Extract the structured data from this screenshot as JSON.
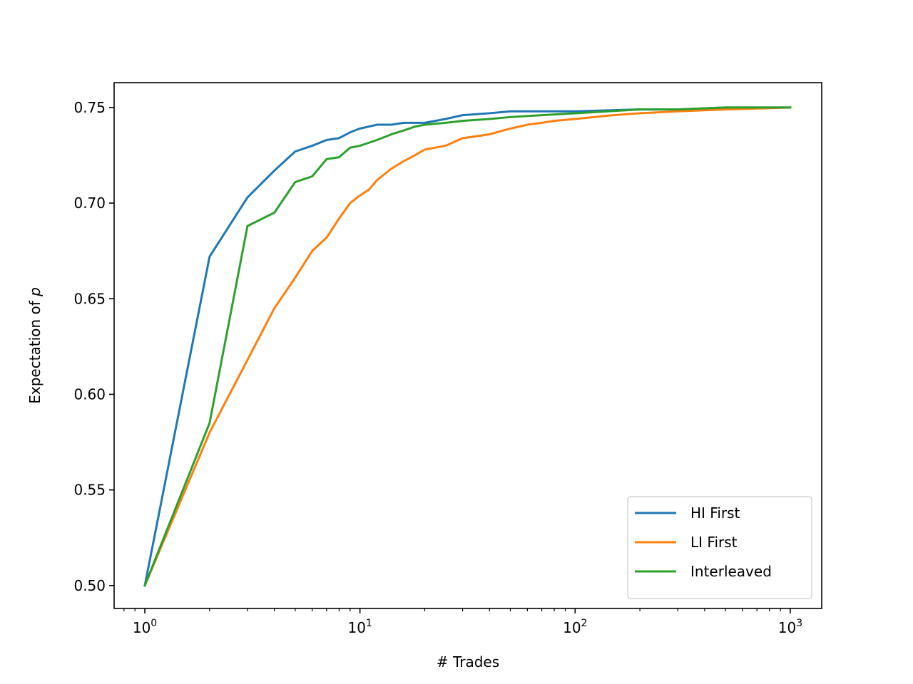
{
  "chart_data": {
    "type": "line",
    "xlabel": "# Trades",
    "ylabel_text": "Expectation of ",
    "ylabel_var": "p",
    "xscale": "log",
    "xlim": [
      0.72,
      1400
    ],
    "ylim": [
      0.488,
      0.763
    ],
    "xticks": [
      {
        "value": 1,
        "base": "10",
        "exp": "0"
      },
      {
        "value": 10,
        "base": "10",
        "exp": "1"
      },
      {
        "value": 100,
        "base": "10",
        "exp": "2"
      },
      {
        "value": 1000,
        "base": "10",
        "exp": "3"
      }
    ],
    "yticks": [
      {
        "value": 0.5,
        "label": "0.50"
      },
      {
        "value": 0.55,
        "label": "0.55"
      },
      {
        "value": 0.6,
        "label": "0.60"
      },
      {
        "value": 0.65,
        "label": "0.65"
      },
      {
        "value": 0.7,
        "label": "0.70"
      },
      {
        "value": 0.75,
        "label": "0.75"
      }
    ],
    "legend_position": "lower-right",
    "grid": false,
    "series": [
      {
        "name": "HI First",
        "color": "#1f77b4",
        "points": [
          [
            1,
            0.5
          ],
          [
            2,
            0.672
          ],
          [
            3,
            0.703
          ],
          [
            4,
            0.717
          ],
          [
            5,
            0.727
          ],
          [
            6,
            0.73
          ],
          [
            7,
            0.733
          ],
          [
            8,
            0.734
          ],
          [
            9,
            0.737
          ],
          [
            10,
            0.739
          ],
          [
            12,
            0.741
          ],
          [
            14,
            0.741
          ],
          [
            16,
            0.742
          ],
          [
            20,
            0.742
          ],
          [
            25,
            0.744
          ],
          [
            30,
            0.746
          ],
          [
            40,
            0.747
          ],
          [
            50,
            0.748
          ],
          [
            70,
            0.748
          ],
          [
            100,
            0.748
          ],
          [
            200,
            0.749
          ],
          [
            300,
            0.749
          ],
          [
            500,
            0.75
          ],
          [
            1000,
            0.75
          ]
        ]
      },
      {
        "name": "LI First",
        "color": "#ff7f0e",
        "points": [
          [
            1,
            0.5
          ],
          [
            2,
            0.58
          ],
          [
            3,
            0.618
          ],
          [
            4,
            0.645
          ],
          [
            5,
            0.661
          ],
          [
            6,
            0.675
          ],
          [
            7,
            0.682
          ],
          [
            8,
            0.692
          ],
          [
            9,
            0.7
          ],
          [
            10,
            0.704
          ],
          [
            11,
            0.707
          ],
          [
            12,
            0.712
          ],
          [
            14,
            0.718
          ],
          [
            16,
            0.722
          ],
          [
            18,
            0.725
          ],
          [
            20,
            0.728
          ],
          [
            25,
            0.73
          ],
          [
            30,
            0.734
          ],
          [
            35,
            0.735
          ],
          [
            40,
            0.736
          ],
          [
            50,
            0.739
          ],
          [
            60,
            0.741
          ],
          [
            70,
            0.742
          ],
          [
            80,
            0.743
          ],
          [
            100,
            0.744
          ],
          [
            150,
            0.746
          ],
          [
            200,
            0.747
          ],
          [
            300,
            0.748
          ],
          [
            500,
            0.749
          ],
          [
            1000,
            0.75
          ]
        ]
      },
      {
        "name": "Interleaved",
        "color": "#2ca02c",
        "points": [
          [
            1,
            0.5
          ],
          [
            2,
            0.585
          ],
          [
            3,
            0.688
          ],
          [
            4,
            0.695
          ],
          [
            5,
            0.711
          ],
          [
            6,
            0.714
          ],
          [
            7,
            0.723
          ],
          [
            8,
            0.724
          ],
          [
            9,
            0.729
          ],
          [
            10,
            0.73
          ],
          [
            12,
            0.733
          ],
          [
            14,
            0.736
          ],
          [
            16,
            0.738
          ],
          [
            18,
            0.74
          ],
          [
            20,
            0.741
          ],
          [
            25,
            0.742
          ],
          [
            30,
            0.743
          ],
          [
            40,
            0.744
          ],
          [
            50,
            0.745
          ],
          [
            70,
            0.746
          ],
          [
            100,
            0.747
          ],
          [
            200,
            0.749
          ],
          [
            300,
            0.749
          ],
          [
            500,
            0.75
          ],
          [
            1000,
            0.75
          ]
        ]
      }
    ]
  }
}
